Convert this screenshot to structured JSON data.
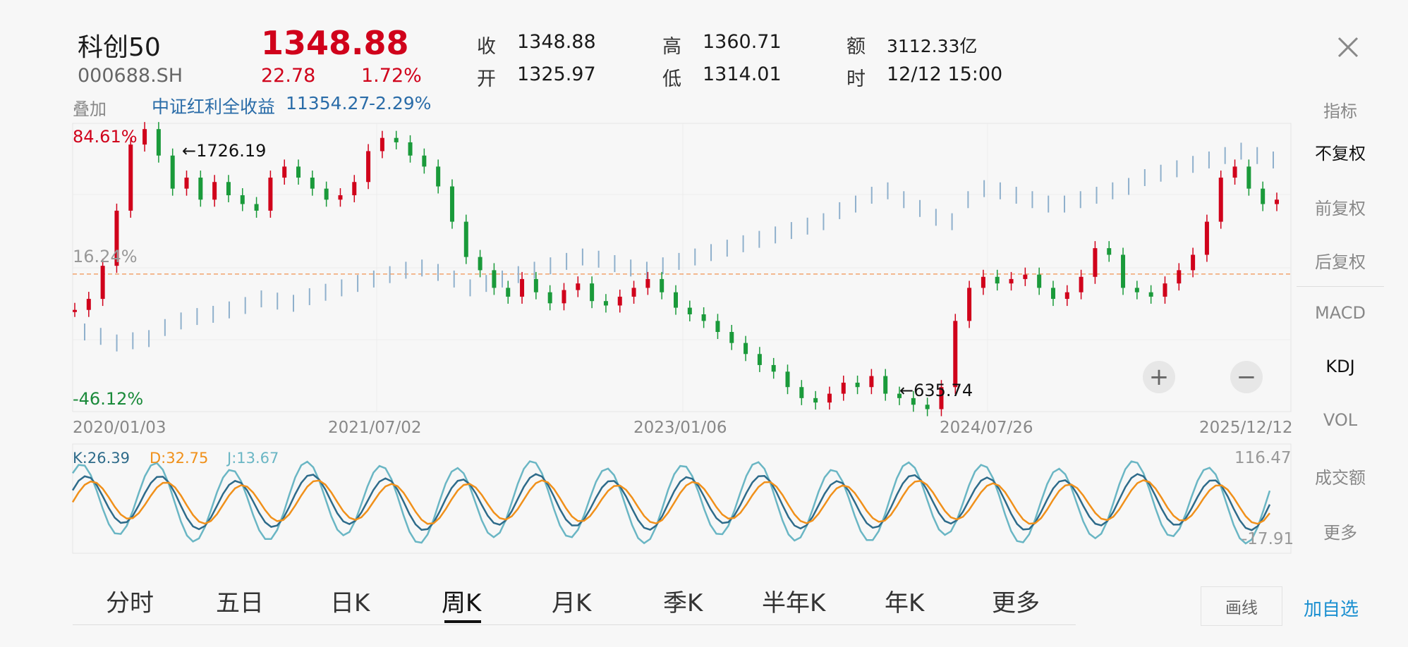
{
  "stock": {
    "name": "科创50",
    "code": "000688.SH",
    "price": "1348.88",
    "change": "22.78",
    "change_pct": "1.72%"
  },
  "quote": {
    "close_label": "收",
    "close": "1348.88",
    "open_label": "开",
    "open": "1325.97",
    "high_label": "高",
    "high": "1360.71",
    "low_label": "低",
    "low": "1314.01",
    "amount_label": "额",
    "amount": "3112.33亿",
    "time_label": "时",
    "time": "12/12 15:00"
  },
  "overlay": {
    "label": "叠加",
    "name": "中证红利全收益",
    "value": "11354.27",
    "pct": "-2.29%"
  },
  "chart_data": {
    "type": "line",
    "top_pct": "84.61%",
    "mid_pct": "16.24%",
    "bottom_pct": "-46.12%",
    "max_label": "←1726.19",
    "min_label": "←635.74",
    "x_ticks": [
      "2020/01/03",
      "2021/07/02",
      "2023/01/06",
      "2024/07/26",
      "2025/12/12"
    ],
    "main_series_y_pct": [
      0,
      5,
      20,
      45,
      75,
      82,
      70,
      55,
      60,
      50,
      58,
      52,
      48,
      45,
      60,
      65,
      60,
      55,
      50,
      52,
      58,
      72,
      78,
      76,
      70,
      65,
      56,
      40,
      24,
      18,
      10,
      6,
      14,
      8,
      3,
      9,
      12,
      4,
      2,
      6,
      10,
      14,
      8,
      1,
      -2,
      -5,
      -10,
      -15,
      -20,
      -25,
      -28,
      -35,
      -40,
      -42,
      -38,
      -33,
      -35,
      -30,
      -38,
      -40,
      -43,
      -45,
      -35,
      -5,
      10,
      15,
      12,
      14,
      16,
      10,
      5,
      8,
      15,
      28,
      25,
      10,
      8,
      6,
      12,
      18,
      25,
      40,
      60,
      65,
      55,
      48,
      50
    ],
    "overlay_series_y_pct": [
      -10,
      -12,
      -15,
      -14,
      -13,
      -8,
      -5,
      -3,
      -2,
      0,
      2,
      5,
      4,
      3,
      6,
      8,
      10,
      12,
      14,
      16,
      18,
      19,
      17,
      14,
      10,
      12,
      14,
      16,
      18,
      20,
      22,
      24,
      23,
      21,
      19,
      18,
      20,
      22,
      24,
      26,
      28,
      30,
      32,
      34,
      36,
      38,
      40,
      45,
      48,
      52,
      54,
      50,
      46,
      42,
      40,
      50,
      55,
      54,
      52,
      50,
      48,
      48,
      50,
      52,
      54,
      56,
      60,
      62,
      64,
      66,
      68,
      70,
      72,
      70,
      68
    ],
    "kdj_label_k": "K:26.39",
    "kdj_label_d": "D:32.75",
    "kdj_label_j": "J:13.67",
    "kdj_max": "116.47",
    "kdj_min": "-17.91",
    "k_color": "#2e6b8a",
    "d_color": "#f0901a",
    "j_color": "#6ab6c4"
  },
  "side_menu": [
    "指标",
    "不复权",
    "前复权",
    "后复权",
    "MACD",
    "KDJ",
    "VOL",
    "成交额",
    "更多"
  ],
  "tabs": [
    "分时",
    "五日",
    "日K",
    "周K",
    "月K",
    "季K",
    "半年K",
    "年K",
    "更多"
  ],
  "buttons": {
    "draw": "画线",
    "add_fav": "加自选"
  },
  "zoom": {
    "plus": "+",
    "minus": "−"
  },
  "colors": {
    "up": "#d0021b",
    "down": "#1a9a3a",
    "overlay": "#8fb0cc",
    "baseline": "#f07a2a"
  }
}
